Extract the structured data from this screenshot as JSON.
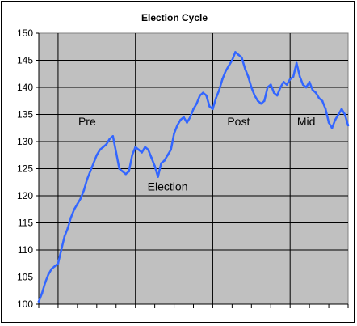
{
  "chart_data": {
    "type": "line",
    "title": "Election Cycle",
    "xlabel": "",
    "ylabel": "",
    "ylim": [
      100,
      150
    ],
    "yticks": [
      "100",
      "105",
      "110",
      "115",
      "120",
      "125",
      "130",
      "135",
      "140",
      "145",
      "150"
    ],
    "xlim": [
      0,
      48
    ],
    "x_minor_ticks": 16,
    "grid": {
      "y": true,
      "phase_dividers_x": [
        3,
        15,
        27,
        39
      ]
    },
    "phase_labels": [
      {
        "text": "Pre",
        "x": 7.5,
        "y": 133
      },
      {
        "text": "Election",
        "x": 20,
        "y": 121
      },
      {
        "text": "Post",
        "x": 31,
        "y": 133
      },
      {
        "text": "Mid",
        "x": 41.5,
        "y": 133
      }
    ],
    "colors": {
      "plot_bg": "#c0c0c0",
      "line": "#3366ff",
      "grid": "#000000"
    },
    "series": [
      {
        "name": "",
        "x": [
          0,
          0.5,
          1,
          1.5,
          2,
          2.5,
          3,
          3.5,
          4,
          4.5,
          5,
          5.5,
          6,
          6.5,
          7,
          7.5,
          8,
          8.5,
          9,
          9.5,
          10,
          10.5,
          11,
          11.5,
          12,
          12.5,
          13,
          13.5,
          14,
          14.5,
          15,
          15.5,
          16,
          16.5,
          17,
          17.5,
          18,
          18.5,
          19,
          19.5,
          20,
          20.5,
          21,
          21.5,
          22,
          22.5,
          23,
          23.5,
          24,
          24.5,
          25,
          25.5,
          26,
          26.5,
          27,
          27.5,
          28,
          28.5,
          29,
          29.5,
          30,
          30.5,
          31,
          31.5,
          32,
          32.5,
          33,
          33.5,
          34,
          34.5,
          35,
          35.5,
          36,
          36.5,
          37,
          37.5,
          38,
          38.5,
          39,
          39.5,
          40,
          40.5,
          41,
          41.5,
          42,
          42.5,
          43,
          43.5,
          44,
          44.5,
          45,
          45.5,
          46,
          46.5,
          47,
          47.5,
          48
        ],
        "values": [
          100.5,
          102,
          104,
          105.5,
          106.5,
          107,
          107.5,
          110,
          112.5,
          114,
          116,
          117.5,
          118.5,
          119.5,
          121,
          123,
          124.5,
          126,
          127.5,
          128.5,
          129,
          129.5,
          130.5,
          131,
          128,
          125,
          124.5,
          124,
          124.5,
          127.5,
          129,
          128.5,
          128,
          129,
          128.5,
          127,
          125.5,
          123.5,
          126,
          126.5,
          127.5,
          128.5,
          131.5,
          133,
          134,
          134.5,
          133.5,
          134.5,
          136,
          137,
          138.5,
          139,
          138.5,
          136.5,
          136,
          138,
          139.5,
          141.5,
          143,
          144,
          145,
          146.5,
          146,
          145.5,
          143.5,
          142,
          140,
          138.5,
          137.5,
          137,
          137.5,
          140,
          140.5,
          139,
          138.5,
          140,
          141,
          140.5,
          141.5,
          142,
          144.5,
          142,
          140.5,
          140,
          141,
          139.5,
          139,
          138,
          137.5,
          136,
          133.5,
          132.5,
          134,
          135,
          136,
          135,
          133
        ]
      }
    ]
  }
}
